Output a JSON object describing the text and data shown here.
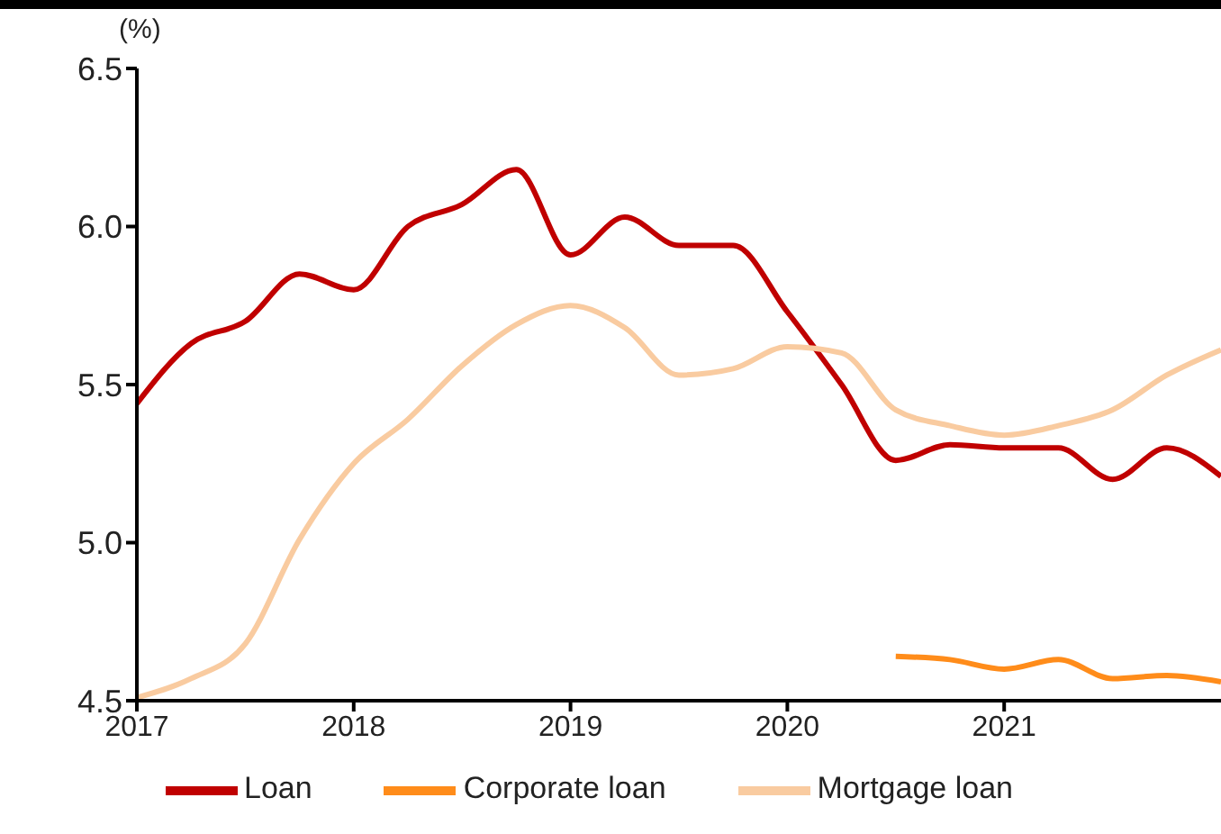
{
  "chart_data": {
    "type": "line",
    "ylabel": "(%)",
    "x": [
      2017,
      2017.25,
      2017.5,
      2017.75,
      2018,
      2018.25,
      2018.5,
      2018.75,
      2019,
      2019.25,
      2019.5,
      2019.75,
      2020,
      2020.25,
      2020.5,
      2020.75,
      2021,
      2021.25,
      2021.5,
      2021.75,
      2022
    ],
    "xlim": [
      2017,
      2022
    ],
    "xticks": [
      2017,
      2018,
      2019,
      2020,
      2021
    ],
    "ylim": [
      4.5,
      6.5
    ],
    "yticks": [
      4.5,
      {
        "value": 5,
        "label": "5.0"
      },
      5.5,
      {
        "value": 6,
        "label": "6.0"
      },
      6.5
    ],
    "series": [
      {
        "name": "Loan",
        "color": "#c00000",
        "values": [
          5.44,
          5.63,
          5.7,
          5.85,
          5.8,
          6.0,
          6.07,
          6.18,
          5.91,
          6.03,
          5.94,
          5.94,
          5.73,
          5.5,
          5.26,
          5.31,
          5.3,
          5.3,
          5.2,
          5.3,
          5.21
        ]
      },
      {
        "name": "Corporate loan",
        "color": "#ff8c1a",
        "values": [
          null,
          null,
          null,
          null,
          null,
          null,
          null,
          null,
          null,
          null,
          null,
          null,
          null,
          null,
          4.64,
          4.63,
          4.6,
          4.63,
          4.57,
          4.58,
          4.56
        ]
      },
      {
        "name": "Mortgage loan",
        "color": "#f9cba0",
        "values": [
          4.51,
          4.57,
          4.68,
          5.01,
          5.25,
          5.39,
          5.56,
          5.69,
          5.75,
          5.68,
          5.53,
          5.55,
          5.62,
          5.6,
          5.42,
          5.37,
          5.34,
          5.37,
          5.42,
          5.53,
          5.61
        ]
      }
    ],
    "legend": "bottom",
    "grid": false,
    "marker": "none",
    "line_style": "solid"
  }
}
